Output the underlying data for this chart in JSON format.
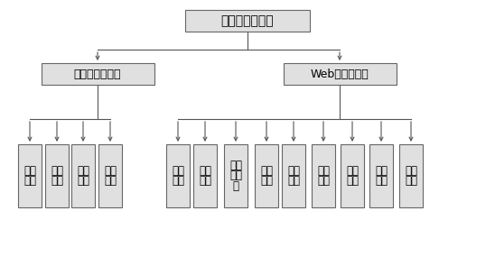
{
  "title": "云平台系统功能",
  "level2_left": "应用服务器程序",
  "level2_right": "Web服务器程序",
  "level3_left": [
    [
      "系统",
      "管理"
    ],
    [
      "通信",
      "配置"
    ],
    [
      "数据",
      "通信"
    ],
    [
      "数据",
      "分发"
    ]
  ],
  "level3_right": [
    [
      "用户",
      "登录"
    ],
    [
      "用户",
      "管理"
    ],
    [
      "可视",
      "化界",
      "面"
    ],
    [
      "参数",
      "设定"
    ],
    [
      "数据",
      "显示"
    ],
    [
      "历史",
      "曲线"
    ],
    [
      "报警",
      "管理"
    ],
    [
      "查询",
      "打印"
    ],
    [
      "操作",
      "日志"
    ]
  ],
  "box_facecolor": "#e0e0e0",
  "box_edgecolor": "#666666",
  "line_color": "#555555",
  "text_color": "#000000",
  "font_size_root": 10,
  "font_size_l2": 9,
  "font_size_l3": 8.5
}
